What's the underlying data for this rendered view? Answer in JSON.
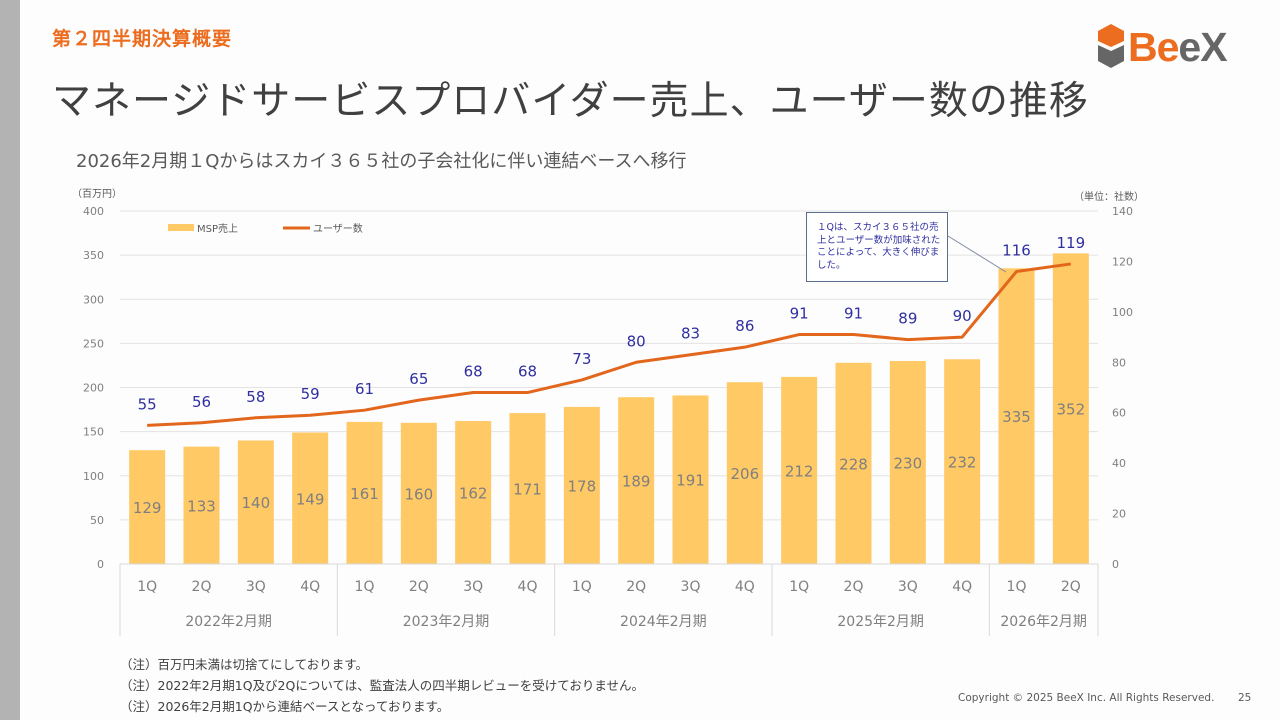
{
  "slide": {
    "section_label": "第２四半期決算概要",
    "title": "マネージドサービスプロバイダー売上、ユーザー数の推移",
    "subtitle": "2026年2月期１Qからはスカイ３６５社の子会社化に伴い連結ベースへ移行",
    "logo": {
      "part1": "Be",
      "part2": "eX",
      "icon": "beex-hexagon-logo-icon"
    },
    "colors": {
      "accent": "#ec6d1f",
      "bar": "#ffc966",
      "line": "#e2661c",
      "line_label": "#2f2fa0",
      "bar_label": "#7f7f7f"
    },
    "callout_text": "１Qは、スカイ３６５社の売上とユーザー数が加味されたことによって、大きく伸びました。",
    "notes": [
      "（注）百万円未満は切捨てにしております。",
      "（注）2022年2月期1Q及び2Qについては、監査法人の四半期レビューを受けておりません。",
      "（注）2026年2月期1Qから連結ベースとなっております。"
    ],
    "copyright": "Copyright © 2025 BeeX Inc. All Rights Reserved.",
    "page_number": "25"
  },
  "chart_data": {
    "type": "bar",
    "title": "",
    "categories": [
      "1Q",
      "2Q",
      "3Q",
      "4Q",
      "1Q",
      "2Q",
      "3Q",
      "4Q",
      "1Q",
      "2Q",
      "3Q",
      "4Q",
      "1Q",
      "2Q",
      "3Q",
      "4Q",
      "1Q",
      "2Q"
    ],
    "groups": [
      {
        "label": "2022年2月期",
        "count": 4
      },
      {
        "label": "2023年2月期",
        "count": 4
      },
      {
        "label": "2024年2月期",
        "count": 4
      },
      {
        "label": "2025年2月期",
        "count": 4
      },
      {
        "label": "2026年2月期",
        "count": 2
      }
    ],
    "series": [
      {
        "name": "MSP売上",
        "type": "bar",
        "axis": "left",
        "values": [
          129,
          133,
          140,
          149,
          161,
          160,
          162,
          171,
          178,
          189,
          191,
          206,
          212,
          228,
          230,
          232,
          335,
          352
        ]
      },
      {
        "name": "ユーザー数",
        "type": "line",
        "axis": "right",
        "values": [
          55,
          56,
          58,
          59,
          61,
          65,
          68,
          68,
          73,
          80,
          83,
          86,
          91,
          91,
          89,
          90,
          116,
          119
        ]
      }
    ],
    "left_axis": {
      "unit_label": "（百万円）",
      "ylim": [
        0,
        400
      ],
      "ticks": [
        0,
        50,
        100,
        150,
        200,
        250,
        300,
        350,
        400
      ]
    },
    "right_axis": {
      "unit_label": "（単位：社数）",
      "ylim": [
        0,
        140
      ],
      "ticks": [
        0,
        20,
        40,
        60,
        80,
        100,
        120,
        140
      ]
    },
    "grid": true,
    "legend": {
      "placement": "top-left",
      "entries": [
        "MSP売上",
        "ユーザー数"
      ]
    },
    "annotations": [
      {
        "text": "１Qは、スカイ３６５社の売上とユーザー数が加味されたことによって、大きく伸びました。",
        "points_to": "2026年2月期 1Q"
      }
    ]
  }
}
